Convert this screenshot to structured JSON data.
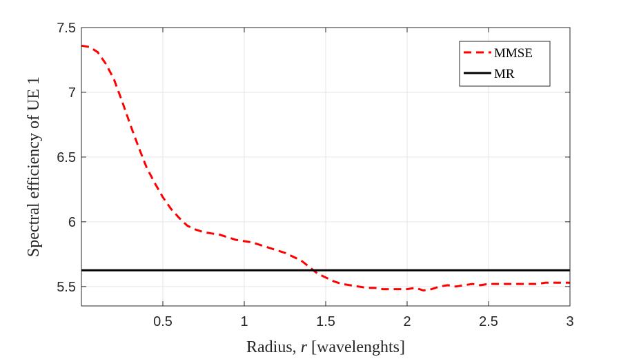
{
  "chart_data": {
    "type": "line",
    "title": "",
    "xlabel_prefix": "Radius, ",
    "xlabel_var": "r",
    "xlabel_suffix": " [wavelenghts]",
    "ylabel": "Spectral efficiency of UE 1",
    "xlim": [
      0,
      3
    ],
    "ylim": [
      5.35,
      7.5
    ],
    "grid": true,
    "legend_position": "top-right",
    "xticks": [
      0.5,
      1,
      1.5,
      2,
      2.5,
      3
    ],
    "xtick_labels": [
      "0.5",
      "1",
      "1.5",
      "2",
      "2.5",
      "3"
    ],
    "yticks": [
      5.5,
      6,
      6.5,
      7,
      7.5
    ],
    "ytick_labels": [
      "5.5",
      "6",
      "6.5",
      "7",
      "7.5"
    ],
    "series": [
      {
        "name": "MMSE",
        "style": "dashed",
        "color": "#ff0000",
        "x": [
          0,
          0.05,
          0.1,
          0.15,
          0.2,
          0.25,
          0.3,
          0.35,
          0.4,
          0.45,
          0.5,
          0.55,
          0.6,
          0.65,
          0.7,
          0.75,
          0.8,
          0.85,
          0.9,
          0.95,
          1.0,
          1.05,
          1.1,
          1.15,
          1.2,
          1.25,
          1.3,
          1.35,
          1.4,
          1.45,
          1.5,
          1.55,
          1.6,
          1.65,
          1.7,
          1.75,
          1.8,
          1.85,
          1.9,
          1.95,
          2.0,
          2.05,
          2.1,
          2.15,
          2.2,
          2.25,
          2.3,
          2.35,
          2.4,
          2.45,
          2.5,
          2.55,
          2.6,
          2.65,
          2.7,
          2.75,
          2.8,
          2.85,
          2.9,
          2.95,
          3.0
        ],
        "y": [
          7.36,
          7.35,
          7.31,
          7.22,
          7.1,
          6.93,
          6.75,
          6.58,
          6.42,
          6.3,
          6.19,
          6.1,
          6.03,
          5.97,
          5.94,
          5.92,
          5.91,
          5.9,
          5.88,
          5.86,
          5.85,
          5.84,
          5.82,
          5.8,
          5.78,
          5.76,
          5.73,
          5.7,
          5.65,
          5.6,
          5.57,
          5.54,
          5.52,
          5.51,
          5.5,
          5.49,
          5.49,
          5.48,
          5.48,
          5.48,
          5.48,
          5.49,
          5.47,
          5.48,
          5.5,
          5.51,
          5.5,
          5.51,
          5.52,
          5.51,
          5.52,
          5.52,
          5.52,
          5.52,
          5.52,
          5.52,
          5.52,
          5.53,
          5.53,
          5.53,
          5.53
        ]
      },
      {
        "name": "MR",
        "style": "solid",
        "color": "#000000",
        "x": [
          0,
          3
        ],
        "y": [
          5.625,
          5.625
        ]
      }
    ]
  }
}
